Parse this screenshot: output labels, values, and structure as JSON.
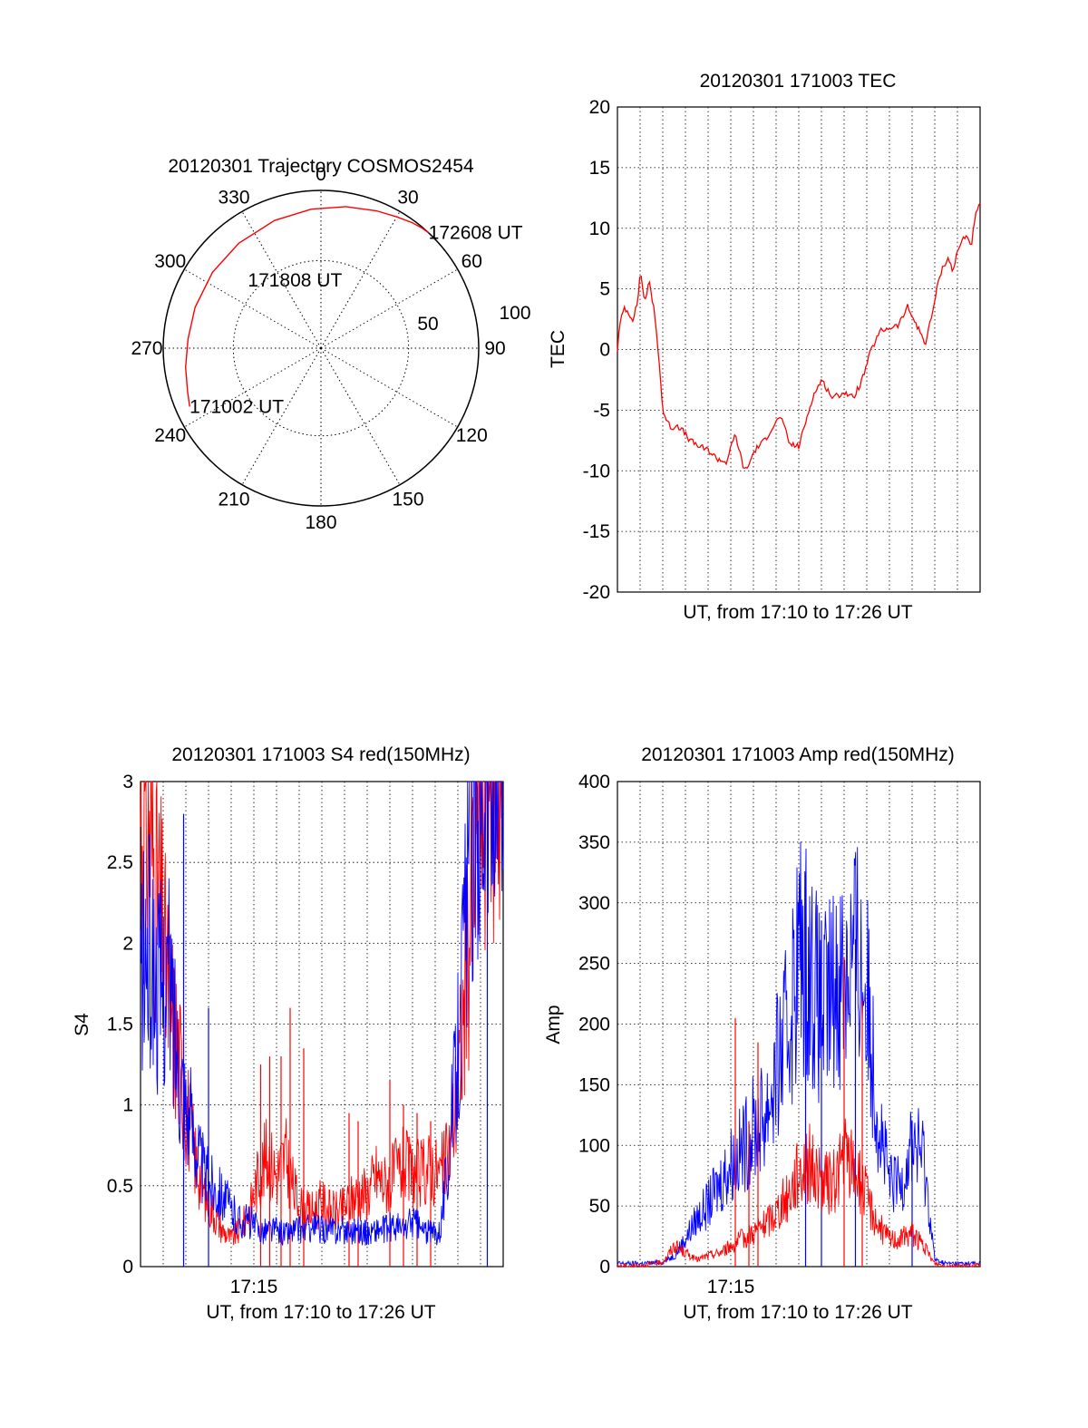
{
  "colors": {
    "primary": "#ff0000",
    "secondary": "#0000ff",
    "axis": "#000000",
    "grid": "#000000"
  },
  "chart_data": [
    {
      "id": "trajectory",
      "type": "polar",
      "title": "20120301 Trajectory COSMOS2454",
      "azimuth_labels": [
        "0",
        "30",
        "60",
        "90",
        "120",
        "150",
        "180",
        "210",
        "240",
        "270",
        "300",
        "330"
      ],
      "azimuth_values": [
        0,
        30,
        60,
        90,
        120,
        150,
        180,
        210,
        240,
        270,
        300,
        330
      ],
      "radial_labels": [
        {
          "value": 50,
          "label": "50"
        },
        {
          "value": 100,
          "label": "100"
        }
      ],
      "radial_max": 90,
      "track": {
        "azimuth_deg": [
          246,
          252,
          262,
          274,
          288,
          305,
          322,
          340,
          356,
          10,
          22,
          30,
          36,
          40,
          43
        ],
        "zenith_deg": [
          82,
          80,
          78,
          76,
          75.5,
          75.5,
          76,
          77.5,
          79.5,
          82,
          84.5,
          86.5,
          88.5,
          89.5,
          90
        ]
      },
      "annotations": [
        {
          "text": "171002 UT",
          "azimuth_deg": 246,
          "zenith_deg": 82
        },
        {
          "text": "171808 UT",
          "azimuth_deg": 313,
          "zenith_deg": 57
        },
        {
          "text": "172608 UT",
          "azimuth_deg": 43,
          "zenith_deg": 90
        }
      ]
    },
    {
      "id": "tec",
      "type": "line",
      "title": "20120301 171003 TEC",
      "xlabel": "UT, from 17:10 to 17:26 UT",
      "ylabel": "TEC",
      "xlim": [
        0,
        16
      ],
      "ylim": [
        -20,
        20
      ],
      "yticks": [
        -20,
        -15,
        -10,
        -5,
        0,
        5,
        10,
        15,
        20
      ],
      "ytick_labels": [
        "-20",
        "-15",
        "-10",
        "-5",
        "0",
        "5",
        "10",
        "15",
        "20"
      ],
      "xgrid": [
        1,
        2,
        3,
        4,
        5,
        6,
        7,
        8,
        9,
        10,
        11,
        12,
        13,
        14,
        15
      ],
      "series": [
        {
          "name": "TEC",
          "color": "#ff0000",
          "x": [
            0,
            0.1,
            0.3,
            0.5,
            0.7,
            0.9,
            1.0,
            1.2,
            1.4,
            1.6,
            1.8,
            2.0,
            2.2,
            2.4,
            2.6,
            2.8,
            3.2,
            3.6,
            4.0,
            4.4,
            4.8,
            5.2,
            5.6,
            5.8,
            6.0,
            6.2,
            6.5,
            6.8,
            7.2,
            7.6,
            8.0,
            8.3,
            8.6,
            9.0,
            9.5,
            10.0,
            10.4,
            10.8,
            11.2,
            11.6,
            12.0,
            12.4,
            12.8,
            13.2,
            13.6,
            14.0,
            14.2,
            14.4,
            14.6,
            14.8,
            15.0,
            15.2,
            15.4,
            15.6,
            15.8,
            16.0
          ],
          "values": [
            0,
            2,
            3.5,
            3,
            2.5,
            4,
            6.5,
            4,
            5.5,
            3.5,
            0,
            -5,
            -6,
            -6.5,
            -6.2,
            -6.5,
            -7.5,
            -8,
            -8.3,
            -9,
            -9.3,
            -7,
            -10,
            -9.5,
            -8.5,
            -8,
            -7.5,
            -6.5,
            -5.5,
            -7.8,
            -8,
            -6,
            -4,
            -2.5,
            -4,
            -3.5,
            -4,
            -2.5,
            0,
            1.5,
            1.8,
            2,
            3.5,
            2,
            0.5,
            4,
            6,
            7,
            7.5,
            6.5,
            8,
            9,
            9.5,
            8.5,
            11,
            12
          ]
        }
      ]
    },
    {
      "id": "s4",
      "type": "line",
      "title": "20120301 171003 S4 red(150MHz)",
      "xlabel": "UT, from 17:10 to 17:26 UT",
      "ylabel": "S4",
      "xlim": [
        0,
        16
      ],
      "ylim": [
        0,
        3
      ],
      "yticks": [
        0,
        0.5,
        1,
        1.5,
        2,
        2.5,
        3
      ],
      "ytick_labels": [
        "0",
        "0.5",
        "1",
        "1.5",
        "2",
        "2.5",
        "3"
      ],
      "xtick": {
        "value": 5,
        "label": "17:15"
      },
      "xgrid": [
        1,
        2,
        3,
        4,
        5,
        6,
        7,
        8,
        9,
        10,
        11,
        12,
        13,
        14,
        15
      ],
      "series": [
        {
          "name": "red",
          "color": "#ff0000",
          "x": [
            0,
            0.4,
            0.8,
            1.2,
            1.6,
            2.0,
            2.4,
            2.8,
            3.2,
            3.6,
            4.0,
            4.4,
            4.8,
            5.2,
            5.6,
            6.0,
            6.4,
            6.8,
            7.2,
            7.6,
            8.0,
            8.4,
            8.8,
            9.2,
            9.6,
            10.0,
            10.4,
            10.8,
            11.2,
            11.6,
            12.0,
            12.4,
            12.8,
            13.2,
            13.6,
            14.0,
            14.4,
            14.8,
            15.2,
            15.6,
            16.0
          ],
          "values": [
            2.5,
            2.4,
            2.0,
            1.5,
            1.2,
            0.9,
            0.6,
            0.4,
            0.3,
            0.2,
            0.15,
            0.2,
            0.3,
            0.5,
            0.6,
            0.5,
            0.6,
            0.4,
            0.3,
            0.3,
            0.35,
            0.3,
            0.3,
            0.35,
            0.4,
            0.4,
            0.5,
            0.45,
            0.5,
            0.55,
            0.5,
            0.5,
            0.55,
            0.5,
            0.6,
            1.0,
            1.6,
            2.4,
            2.8,
            2.8,
            2.8
          ],
          "spikes": [
            {
              "x": 5.3,
              "top": 1.25
            },
            {
              "x": 5.7,
              "top": 1.3
            },
            {
              "x": 6.2,
              "top": 1.3
            },
            {
              "x": 6.6,
              "top": 1.6
            },
            {
              "x": 7.2,
              "top": 1.35
            },
            {
              "x": 9.2,
              "top": 0.95
            },
            {
              "x": 9.6,
              "top": 0.9
            },
            {
              "x": 11.0,
              "top": 1.15
            },
            {
              "x": 11.6,
              "top": 1.0
            },
            {
              "x": 12.2,
              "top": 0.95
            },
            {
              "x": 12.8,
              "top": 0.9
            }
          ]
        },
        {
          "name": "blue",
          "color": "#0000ff",
          "x": [
            0,
            0.4,
            0.8,
            1.2,
            1.6,
            2.0,
            2.4,
            2.8,
            3.2,
            3.6,
            4.0,
            4.4,
            4.8,
            5.2,
            5.6,
            6.0,
            6.4,
            6.8,
            7.2,
            7.6,
            8.0,
            8.4,
            8.8,
            9.2,
            9.6,
            10.0,
            10.4,
            10.8,
            11.2,
            11.6,
            12.0,
            12.4,
            12.8,
            13.2,
            13.6,
            14.0,
            14.4,
            14.8,
            15.2,
            15.6,
            16.0
          ],
          "values": [
            1.6,
            1.7,
            1.5,
            1.6,
            1.2,
            0.9,
            0.7,
            0.5,
            0.45,
            0.4,
            0.3,
            0.25,
            0.25,
            0.2,
            0.2,
            0.2,
            0.18,
            0.2,
            0.2,
            0.22,
            0.2,
            0.2,
            0.2,
            0.2,
            0.2,
            0.18,
            0.2,
            0.2,
            0.22,
            0.2,
            0.25,
            0.2,
            0.18,
            0.2,
            0.6,
            1.2,
            2.0,
            2.7,
            2.8,
            2.6,
            2.7
          ],
          "spikes": [
            {
              "x": 1.9,
              "top": 2.8
            },
            {
              "x": 3.0,
              "top": 1.6
            },
            {
              "x": 15.3,
              "top": 3.0
            }
          ]
        }
      ]
    },
    {
      "id": "amp",
      "type": "line",
      "title": "20120301 171003 Amp red(150MHz)",
      "xlabel": "UT, from 17:10 to 17:26 UT",
      "ylabel": "Amp",
      "xlim": [
        0,
        16
      ],
      "ylim": [
        0,
        400
      ],
      "yticks": [
        0,
        50,
        100,
        150,
        200,
        250,
        300,
        350,
        400
      ],
      "ytick_labels": [
        "0",
        "50",
        "100",
        "150",
        "200",
        "250",
        "300",
        "350",
        "400"
      ],
      "xtick": {
        "value": 5,
        "label": "17:15"
      },
      "xgrid": [
        1,
        2,
        3,
        4,
        5,
        6,
        7,
        8,
        9,
        10,
        11,
        12,
        13,
        14,
        15
      ],
      "series": [
        {
          "name": "blue",
          "color": "#0000ff",
          "x": [
            0,
            1.0,
            2.0,
            2.5,
            3.0,
            3.5,
            4.0,
            4.5,
            5.0,
            5.5,
            6.0,
            6.5,
            7.0,
            7.5,
            8.0,
            8.5,
            9.0,
            9.5,
            10.0,
            10.5,
            11.0,
            11.5,
            12.0,
            12.5,
            13.0,
            13.5,
            14.0,
            14.5,
            16.0
          ],
          "values": [
            2,
            2,
            3,
            8,
            20,
            35,
            45,
            60,
            75,
            85,
            100,
            110,
            140,
            170,
            230,
            220,
            180,
            200,
            220,
            230,
            200,
            110,
            60,
            60,
            90,
            80,
            5,
            2,
            2
          ],
          "spikes": [
            {
              "x": 8.3,
              "top": 312
            },
            {
              "x": 9.0,
              "top": 285
            },
            {
              "x": 10.5,
              "top": 270
            },
            {
              "x": 13.0,
              "top": 120
            }
          ]
        },
        {
          "name": "red",
          "color": "#ff0000",
          "x": [
            0,
            1.0,
            2.0,
            2.5,
            3.0,
            3.5,
            4.0,
            4.5,
            5.0,
            5.5,
            6.0,
            6.5,
            7.0,
            7.5,
            8.0,
            8.5,
            9.0,
            9.5,
            10.0,
            10.5,
            11.0,
            11.5,
            12.0,
            12.5,
            13.0,
            13.5,
            14.0,
            14.5,
            16.0
          ],
          "values": [
            0,
            0,
            3,
            15,
            10,
            5,
            8,
            10,
            15,
            20,
            25,
            30,
            40,
            50,
            70,
            75,
            60,
            60,
            80,
            70,
            50,
            30,
            20,
            20,
            25,
            15,
            2,
            0,
            0
          ],
          "spikes": [
            {
              "x": 5.2,
              "top": 205
            },
            {
              "x": 6.2,
              "top": 185
            },
            {
              "x": 5.8,
              "top": 120
            },
            {
              "x": 10.0,
              "top": 255
            },
            {
              "x": 10.8,
              "top": 220
            }
          ]
        }
      ]
    }
  ]
}
